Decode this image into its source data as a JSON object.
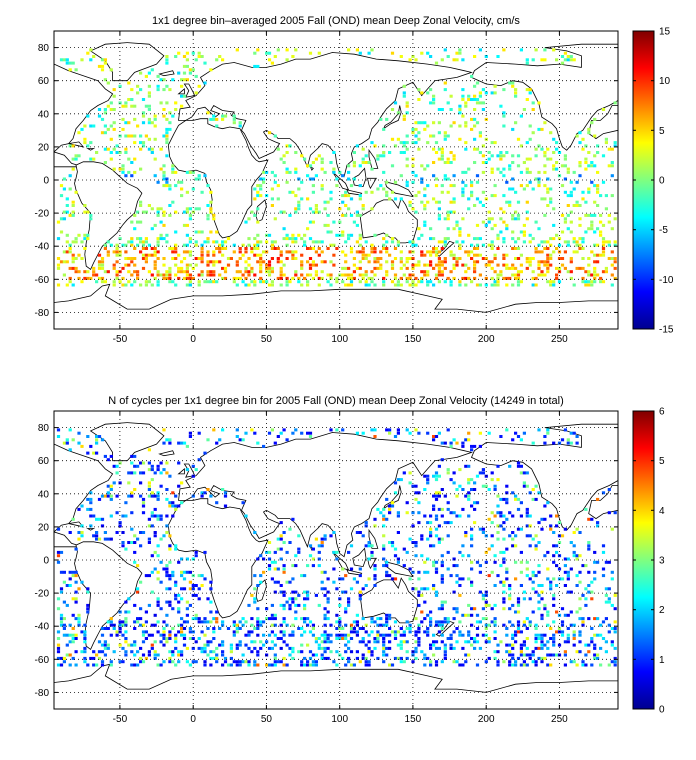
{
  "chart_data": [
    {
      "type": "heatmap",
      "title": "1x1 degree bin–averaged 2005 Fall (OND) mean Deep Zonal Velocity, cm/s",
      "xlabel": "",
      "ylabel": "",
      "xlim": [
        -95,
        290
      ],
      "ylim": [
        -90,
        90
      ],
      "x_ticks": [
        -50,
        0,
        50,
        100,
        150,
        200,
        250
      ],
      "y_ticks": [
        -80,
        -60,
        -40,
        -20,
        0,
        20,
        40,
        60,
        80
      ],
      "grid": true,
      "colorbar": {
        "min": -15,
        "max": 15,
        "ticks": [
          -15,
          -10,
          -5,
          0,
          5,
          10,
          15
        ],
        "colormap": "jet"
      },
      "units": "cm/s",
      "seed": 7
    },
    {
      "type": "heatmap",
      "title": "N of cycles per 1x1 degree bin for 2005 Fall (OND) mean Deep Zonal Velocity (14249 in total)",
      "xlabel": "",
      "ylabel": "",
      "xlim": [
        -95,
        290
      ],
      "ylim": [
        -90,
        90
      ],
      "x_ticks": [
        -50,
        0,
        50,
        100,
        150,
        200,
        250
      ],
      "y_ticks": [
        -80,
        -60,
        -40,
        -20,
        0,
        20,
        40,
        60,
        80
      ],
      "grid": true,
      "colorbar": {
        "min": 0,
        "max": 6,
        "ticks": [
          0,
          1,
          2,
          3,
          4,
          5,
          6
        ],
        "colormap": "jet"
      },
      "total_cycles": 14249,
      "seed": 13
    }
  ]
}
